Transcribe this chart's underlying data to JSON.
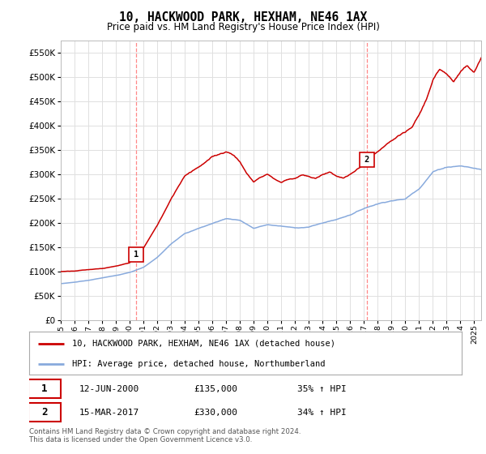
{
  "title": "10, HACKWOOD PARK, HEXHAM, NE46 1AX",
  "subtitle": "Price paid vs. HM Land Registry's House Price Index (HPI)",
  "ytick_values": [
    0,
    50000,
    100000,
    150000,
    200000,
    250000,
    300000,
    350000,
    400000,
    450000,
    500000,
    550000
  ],
  "ylim": [
    0,
    575000
  ],
  "xlim_start": 1995.0,
  "xlim_end": 2025.5,
  "sale1_date": 2000.45,
  "sale1_price": 135000,
  "sale2_date": 2017.21,
  "sale2_price": 330000,
  "annotation1_date": "12-JUN-2000",
  "annotation1_price": "£135,000",
  "annotation1_hpi": "35% ↑ HPI",
  "annotation2_date": "15-MAR-2017",
  "annotation2_price": "£330,000",
  "annotation2_hpi": "34% ↑ HPI",
  "legend1": "10, HACKWOOD PARK, HEXHAM, NE46 1AX (detached house)",
  "legend2": "HPI: Average price, detached house, Northumberland",
  "footer": "Contains HM Land Registry data © Crown copyright and database right 2024.\nThis data is licensed under the Open Government Licence v3.0.",
  "line_color_red": "#cc0000",
  "line_color_blue": "#88aadd",
  "vline_color": "#ff8888",
  "background_color": "#ffffff",
  "grid_color": "#e0e0e0",
  "hpi_keypoints": [
    [
      1995.0,
      75000
    ],
    [
      1996.0,
      78000
    ],
    [
      1997.0,
      82000
    ],
    [
      1998.0,
      87000
    ],
    [
      1999.0,
      92000
    ],
    [
      2000.0,
      98000
    ],
    [
      2001.0,
      108000
    ],
    [
      2002.0,
      128000
    ],
    [
      2003.0,
      155000
    ],
    [
      2004.0,
      178000
    ],
    [
      2005.0,
      188000
    ],
    [
      2006.0,
      198000
    ],
    [
      2007.0,
      208000
    ],
    [
      2008.0,
      205000
    ],
    [
      2009.0,
      188000
    ],
    [
      2010.0,
      195000
    ],
    [
      2011.0,
      192000
    ],
    [
      2012.0,
      188000
    ],
    [
      2013.0,
      190000
    ],
    [
      2014.0,
      198000
    ],
    [
      2015.0,
      205000
    ],
    [
      2016.0,
      215000
    ],
    [
      2017.0,
      228000
    ],
    [
      2018.0,
      238000
    ],
    [
      2019.0,
      245000
    ],
    [
      2020.0,
      248000
    ],
    [
      2021.0,
      270000
    ],
    [
      2022.0,
      305000
    ],
    [
      2023.0,
      315000
    ],
    [
      2024.0,
      318000
    ],
    [
      2025.5,
      310000
    ]
  ],
  "red_keypoints": [
    [
      1995.0,
      100000
    ],
    [
      1996.0,
      102000
    ],
    [
      1997.0,
      105000
    ],
    [
      1998.0,
      108000
    ],
    [
      1999.0,
      112000
    ],
    [
      2000.0,
      118000
    ],
    [
      2000.45,
      135000
    ],
    [
      2001.0,
      148000
    ],
    [
      2002.0,
      195000
    ],
    [
      2003.0,
      248000
    ],
    [
      2004.0,
      298000
    ],
    [
      2005.0,
      318000
    ],
    [
      2006.0,
      338000
    ],
    [
      2007.0,
      350000
    ],
    [
      2007.5,
      345000
    ],
    [
      2008.0,
      330000
    ],
    [
      2008.5,
      305000
    ],
    [
      2009.0,
      288000
    ],
    [
      2009.5,
      298000
    ],
    [
      2010.0,
      305000
    ],
    [
      2010.5,
      295000
    ],
    [
      2011.0,
      288000
    ],
    [
      2011.5,
      295000
    ],
    [
      2012.0,
      298000
    ],
    [
      2012.5,
      305000
    ],
    [
      2013.0,
      300000
    ],
    [
      2013.5,
      295000
    ],
    [
      2014.0,
      305000
    ],
    [
      2014.5,
      310000
    ],
    [
      2015.0,
      302000
    ],
    [
      2015.5,
      298000
    ],
    [
      2016.0,
      305000
    ],
    [
      2016.5,
      315000
    ],
    [
      2017.0,
      325000
    ],
    [
      2017.21,
      330000
    ],
    [
      2017.5,
      340000
    ],
    [
      2018.0,
      350000
    ],
    [
      2018.5,
      360000
    ],
    [
      2019.0,
      370000
    ],
    [
      2019.5,
      380000
    ],
    [
      2020.0,
      385000
    ],
    [
      2020.5,
      395000
    ],
    [
      2021.0,
      420000
    ],
    [
      2021.5,
      450000
    ],
    [
      2022.0,
      490000
    ],
    [
      2022.5,
      510000
    ],
    [
      2023.0,
      505000
    ],
    [
      2023.5,
      490000
    ],
    [
      2024.0,
      510000
    ],
    [
      2024.5,
      525000
    ],
    [
      2025.0,
      515000
    ],
    [
      2025.5,
      540000
    ]
  ]
}
